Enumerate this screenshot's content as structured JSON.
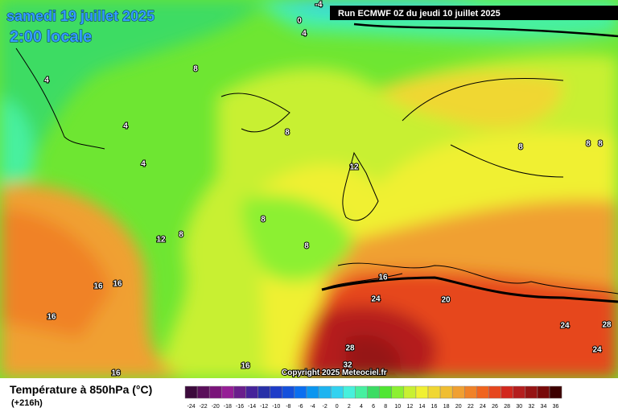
{
  "header": {
    "valid_date": "samedi 19 juillet 2025",
    "local_time": "2:00 locale",
    "run": "Run ECMWF 0Z du jeudi 10 juillet 2025"
  },
  "copyright": "Copyright 2025 Meteociel.fr",
  "legend": {
    "title": "Température à 850hPa (°C)",
    "lead_time": "(+216h)",
    "ticks": [
      -24,
      -22,
      -20,
      -18,
      -16,
      -14,
      -12,
      -10,
      -8,
      -6,
      -4,
      -2,
      0,
      2,
      4,
      6,
      8,
      10,
      12,
      14,
      16,
      18,
      20,
      22,
      24,
      26,
      28,
      30,
      32,
      34,
      36
    ],
    "colors": [
      "#3c0a3c",
      "#5a0f5a",
      "#7a147a",
      "#961e96",
      "#6a1e8c",
      "#46239a",
      "#2830a8",
      "#1e3cc8",
      "#1450dc",
      "#0a6ef0",
      "#0a96f0",
      "#1eb4f0",
      "#32d2f0",
      "#46f0dc",
      "#46f0a0",
      "#3cdc64",
      "#50e632",
      "#8cf032",
      "#c8f032",
      "#f0f032",
      "#f0d732",
      "#f0be32",
      "#f0a032",
      "#f08228",
      "#f0641e",
      "#e6461e",
      "#d2281e",
      "#b41e1e",
      "#961414",
      "#780a0a",
      "#3c0000"
    ]
  },
  "contour_labels": [
    0,
    4,
    -4,
    8,
    4,
    4,
    4,
    8,
    12,
    8,
    8,
    12,
    8,
    16,
    16,
    16,
    16,
    16,
    16,
    24,
    20,
    28,
    32,
    24,
    28,
    24,
    8,
    8,
    8
  ]
}
